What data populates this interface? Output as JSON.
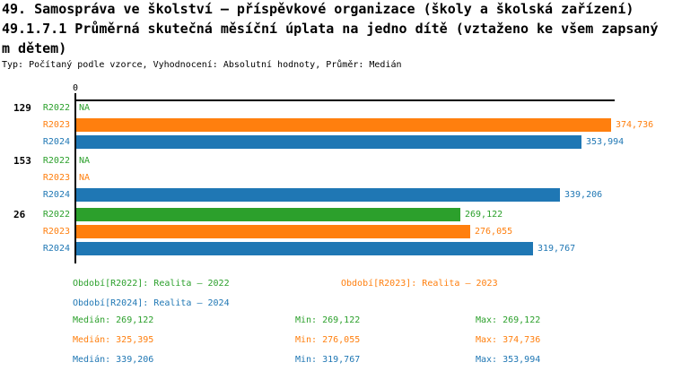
{
  "header": {
    "title_line1": "49. Samospráva ve školství – příspěvkové organizace (školy a školská zařízení)",
    "title_line2": "49.1.7.1 Průměrná skutečná měsíční úplata na jedno dítě (vztaženo ke všem zapsaný",
    "title_line3": "m dětem)",
    "meta": "Typ: Počítaný podle vzorce, Vyhodnocení: Absolutní hodnoty, Průměr: Medián"
  },
  "colors": {
    "R2022": "#2ca02c",
    "R2023": "#ff7f0e",
    "R2024": "#1f77b4",
    "axis": "#000000"
  },
  "chart_data": {
    "type": "bar",
    "orientation": "horizontal",
    "axis": {
      "zero_label": "0",
      "max_value": 377900,
      "grid": false
    },
    "groups": [
      {
        "label": "129",
        "rows": [
          {
            "series": "R2022",
            "value": null,
            "display": "NA"
          },
          {
            "series": "R2023",
            "value": 374736,
            "display": "374,736"
          },
          {
            "series": "R2024",
            "value": 353994,
            "display": "353,994"
          }
        ]
      },
      {
        "label": "153",
        "rows": [
          {
            "series": "R2022",
            "value": null,
            "display": "NA"
          },
          {
            "series": "R2023",
            "value": null,
            "display": "NA"
          },
          {
            "series": "R2024",
            "value": 339206,
            "display": "339,206"
          }
        ]
      },
      {
        "label": "26",
        "rows": [
          {
            "series": "R2022",
            "value": 269122,
            "display": "269,122"
          },
          {
            "series": "R2023",
            "value": 276055,
            "display": "276,055"
          },
          {
            "series": "R2024",
            "value": 319767,
            "display": "319,767"
          }
        ]
      }
    ],
    "median_lines": [
      {
        "series": "R2022",
        "value": 269122
      },
      {
        "series": "R2023",
        "value": 325395
      },
      {
        "series": "R2024",
        "value": 339206
      }
    ]
  },
  "legend": [
    {
      "series": "R2022",
      "label": "Období[R2022]: Realita – 2022"
    },
    {
      "series": "R2023",
      "label": "Období[R2023]: Realita – 2023"
    },
    {
      "series": "R2024",
      "label": "Období[R2024]: Realita – 2024"
    }
  ],
  "stats": [
    {
      "series": "R2022",
      "median": "Medián: 269,122",
      "min": "Min: 269,122",
      "max": "Max: 269,122"
    },
    {
      "series": "R2023",
      "median": "Medián: 325,395",
      "min": "Min: 276,055",
      "max": "Max: 374,736"
    },
    {
      "series": "R2024",
      "median": "Medián: 339,206",
      "min": "Min: 319,767",
      "max": "Max: 353,994"
    }
  ]
}
